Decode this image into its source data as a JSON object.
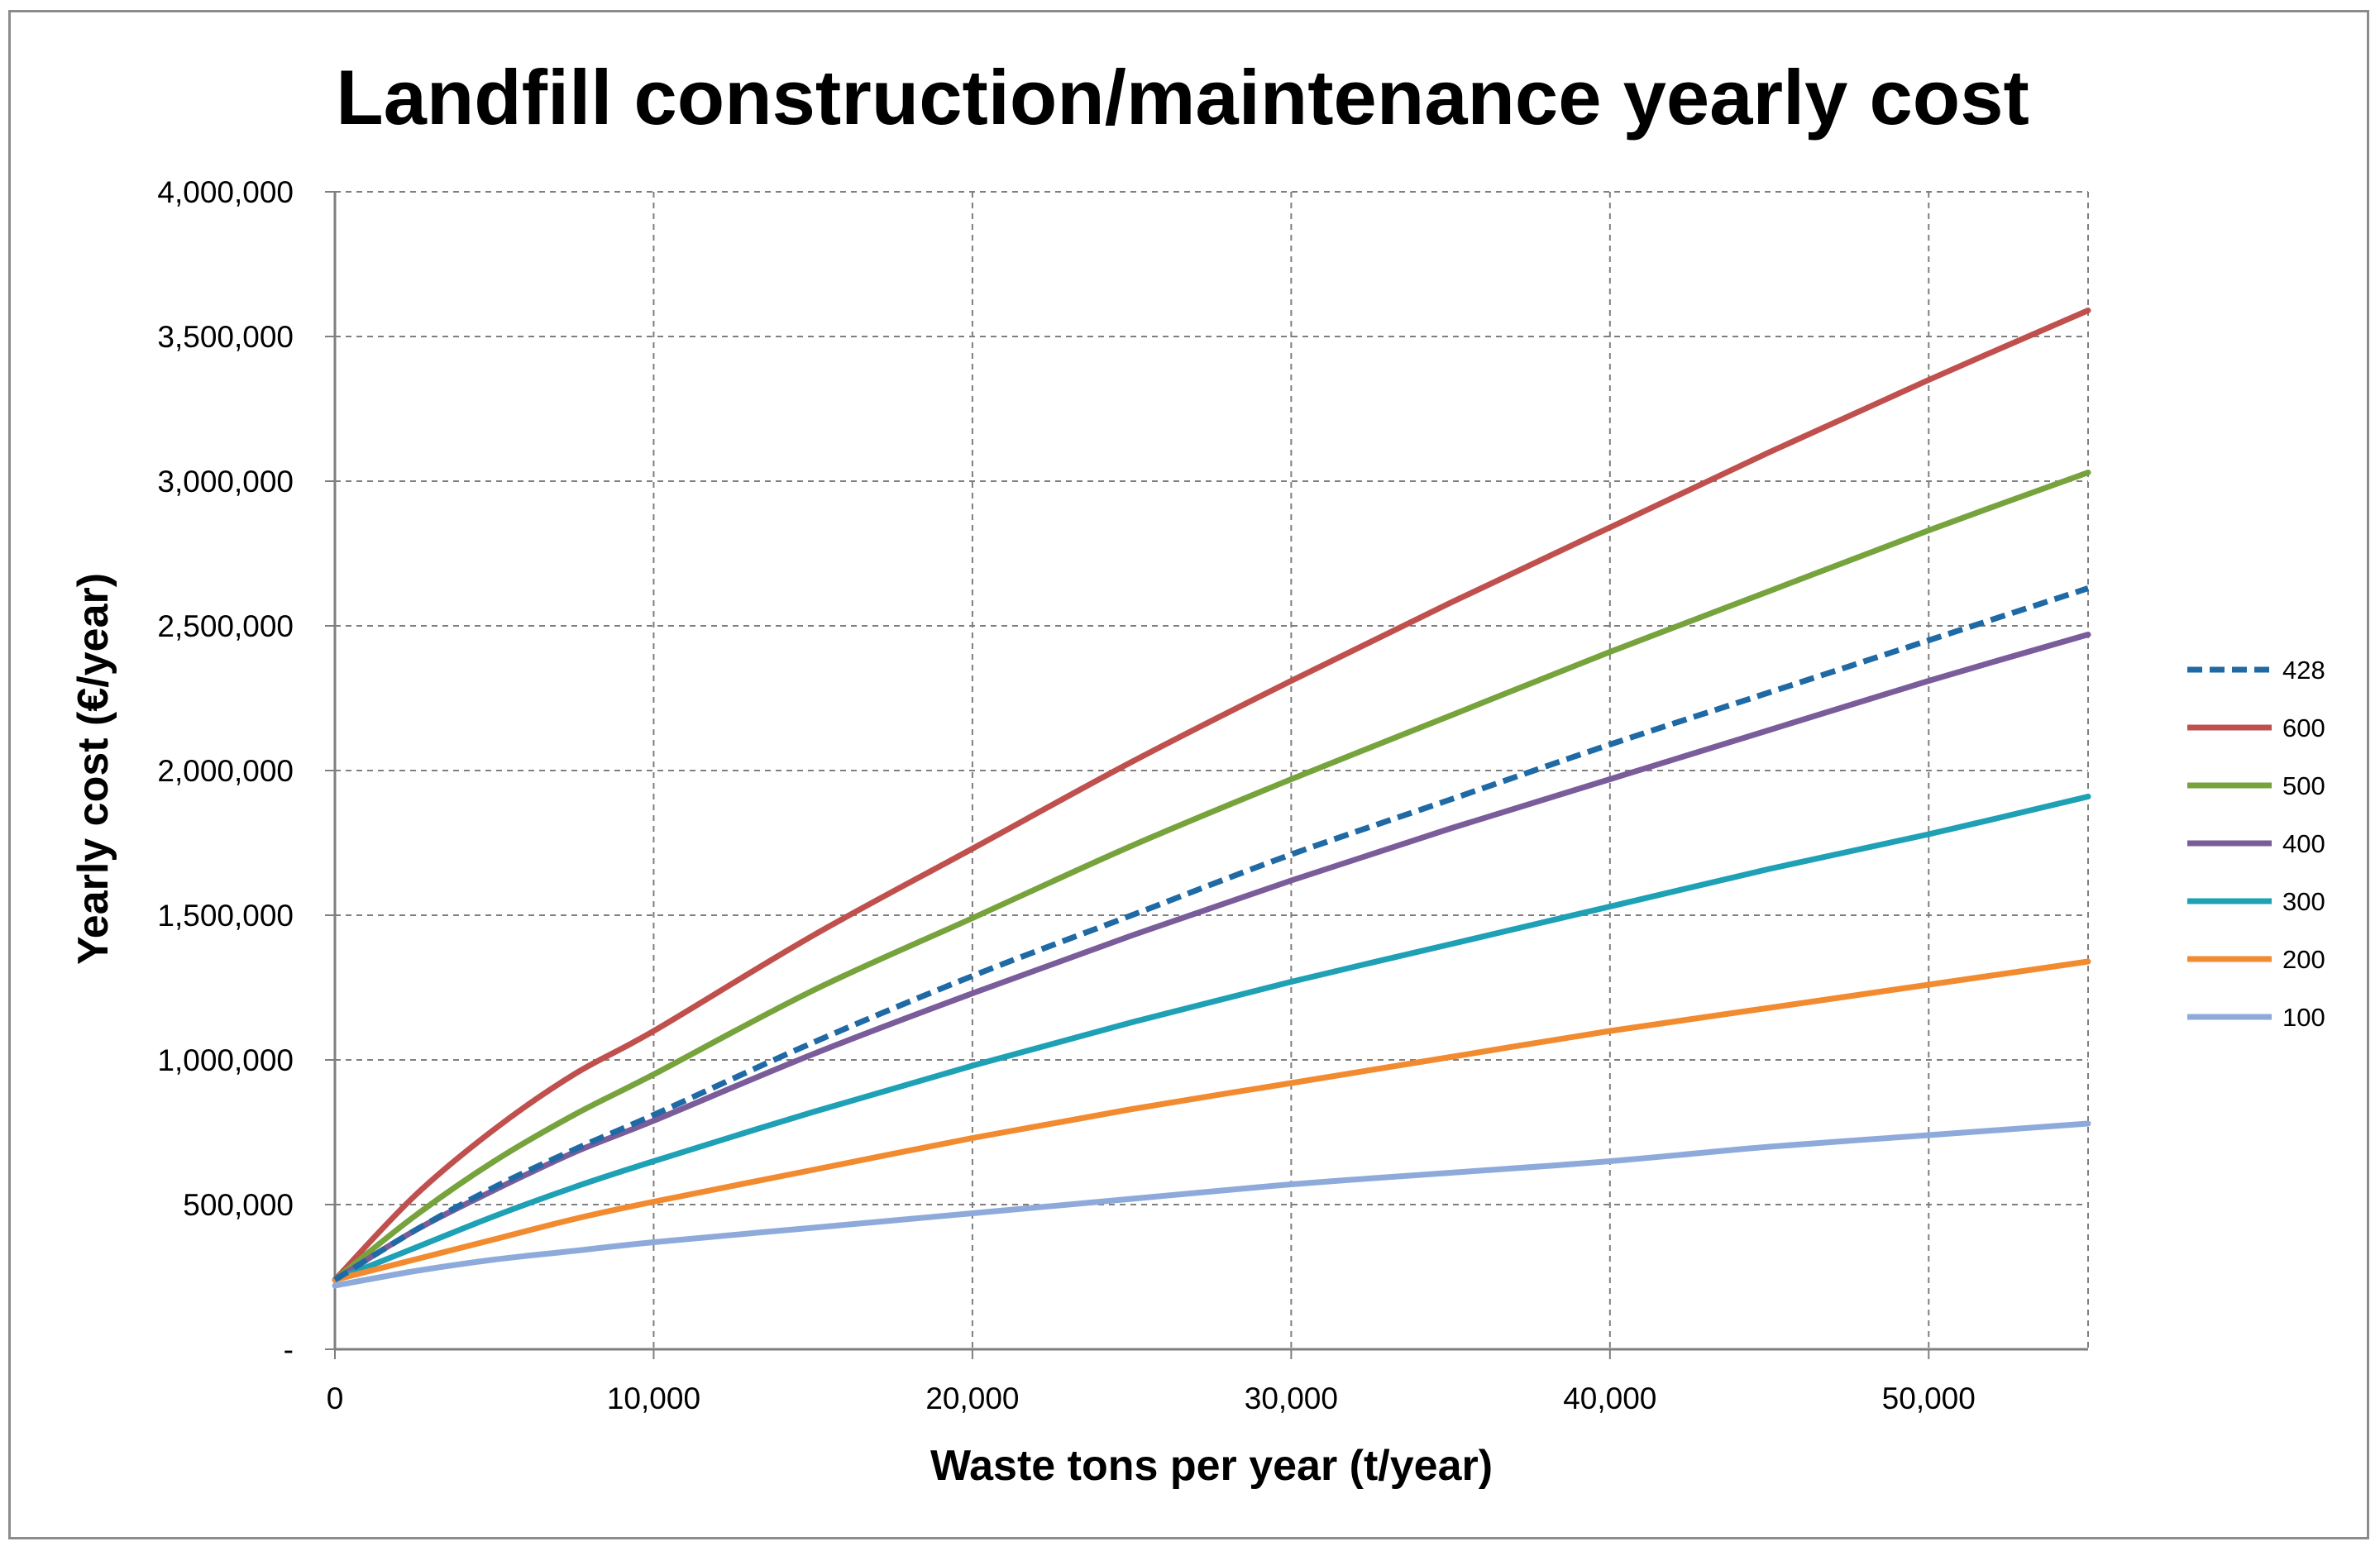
{
  "chart_data": {
    "type": "line",
    "title": "Landfill construction/maintenance yearly cost",
    "xlabel": "Waste  tons per year (t/year)",
    "ylabel": "Yearly cost (€/year)",
    "xlim": [
      0,
      55000
    ],
    "ylim": [
      0,
      4000000
    ],
    "grid": true,
    "legend_position": "right",
    "x_ticks": [
      0,
      10000,
      20000,
      30000,
      40000,
      50000
    ],
    "x_tick_labels": [
      "0",
      "10,000",
      "20,000",
      "30,000",
      "40,000",
      "50,000"
    ],
    "y_ticks": [
      0,
      500000,
      1000000,
      1500000,
      2000000,
      2500000,
      3000000,
      3500000,
      4000000
    ],
    "y_tick_labels": [
      "-",
      "500,000",
      "1,000,000",
      "1,500,000",
      "2,000,000",
      "2,500,000",
      "3,000,000",
      "3,500,000",
      "4,000,000"
    ],
    "x": [
      0,
      2500,
      5000,
      7500,
      10000,
      15000,
      20000,
      25000,
      30000,
      35000,
      40000,
      45000,
      50000,
      55000
    ],
    "series": [
      {
        "name": "428",
        "color": "#1f6aa5",
        "dashed": true,
        "values": [
          240000,
          410000,
          560000,
          690000,
          810000,
          1060000,
          1290000,
          1500000,
          1710000,
          1900000,
          2090000,
          2270000,
          2450000,
          2630000
        ]
      },
      {
        "name": "600",
        "color": "#c0504d",
        "dashed": false,
        "values": [
          240000,
          530000,
          760000,
          950000,
          1100000,
          1430000,
          1730000,
          2030000,
          2310000,
          2580000,
          2840000,
          3100000,
          3350000,
          3590000
        ]
      },
      {
        "name": "500",
        "color": "#77a33d",
        "dashed": false,
        "values": [
          240000,
          460000,
          650000,
          810000,
          950000,
          1240000,
          1490000,
          1740000,
          1970000,
          2190000,
          2410000,
          2620000,
          2830000,
          3030000
        ]
      },
      {
        "name": "400",
        "color": "#7b5c9a",
        "dashed": false,
        "values": [
          240000,
          410000,
          550000,
          680000,
          790000,
          1020000,
          1230000,
          1430000,
          1620000,
          1800000,
          1970000,
          2140000,
          2310000,
          2470000
        ]
      },
      {
        "name": "300",
        "color": "#1ea0b5",
        "dashed": false,
        "values": [
          240000,
          350000,
          460000,
          560000,
          650000,
          820000,
          980000,
          1130000,
          1270000,
          1400000,
          1530000,
          1660000,
          1780000,
          1910000
        ]
      },
      {
        "name": "200",
        "color": "#f28a30",
        "dashed": false,
        "values": [
          240000,
          310000,
          380000,
          450000,
          510000,
          620000,
          730000,
          830000,
          920000,
          1010000,
          1100000,
          1180000,
          1260000,
          1340000
        ]
      },
      {
        "name": "100",
        "color": "#8eaadb",
        "dashed": false,
        "values": [
          220000,
          270000,
          310000,
          340000,
          370000,
          420000,
          470000,
          520000,
          570000,
          610000,
          650000,
          700000,
          740000,
          780000
        ]
      }
    ]
  }
}
